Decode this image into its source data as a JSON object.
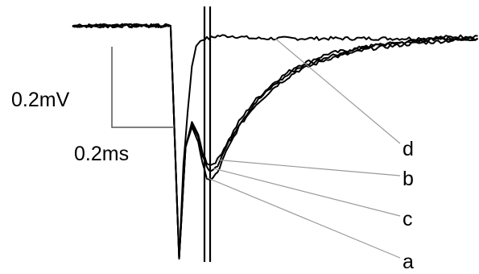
{
  "chart_data": {
    "type": "line",
    "title": "",
    "xlabel": "",
    "ylabel": "",
    "scale_bar": {
      "voltage_label": "0.2mV",
      "time_label": "0.2ms"
    },
    "trace_labels": [
      "d",
      "b",
      "c",
      "a"
    ],
    "series": [
      {
        "name": "d",
        "x": [
          0.0,
          0.21,
          0.46,
          0.5,
          0.52,
          0.54,
          0.56,
          0.58,
          0.6,
          0.62,
          0.64,
          0.68,
          0.75,
          0.85,
          1.0,
          1.2,
          1.4,
          1.6,
          1.9
        ],
        "y": [
          0.0,
          0.0,
          0.0,
          -0.92,
          -0.55,
          -0.34,
          -0.16,
          -0.08,
          -0.06,
          -0.05,
          -0.05,
          -0.04,
          -0.04,
          -0.05,
          -0.05,
          -0.05,
          -0.05,
          -0.05,
          -0.04
        ]
      },
      {
        "name": "b",
        "x": [
          0.0,
          0.21,
          0.46,
          0.5,
          0.53,
          0.56,
          0.59,
          0.61,
          0.63,
          0.65,
          0.68,
          0.72,
          0.78,
          0.85,
          0.95,
          1.05,
          1.2,
          1.4,
          1.6,
          1.75,
          1.9
        ],
        "y": [
          0.0,
          0.0,
          0.0,
          -0.92,
          -0.48,
          -0.38,
          -0.43,
          -0.5,
          -0.54,
          -0.55,
          -0.53,
          -0.47,
          -0.38,
          -0.3,
          -0.22,
          -0.16,
          -0.11,
          -0.08,
          -0.06,
          -0.05,
          -0.05
        ]
      },
      {
        "name": "c",
        "x": [
          0.0,
          0.21,
          0.46,
          0.5,
          0.53,
          0.56,
          0.59,
          0.61,
          0.63,
          0.65,
          0.68,
          0.72,
          0.78,
          0.85,
          0.95,
          1.05,
          1.2,
          1.4,
          1.6,
          1.75,
          1.9
        ],
        "y": [
          0.0,
          0.0,
          0.0,
          -0.92,
          -0.48,
          -0.39,
          -0.44,
          -0.51,
          -0.56,
          -0.57,
          -0.55,
          -0.48,
          -0.39,
          -0.31,
          -0.23,
          -0.17,
          -0.12,
          -0.08,
          -0.06,
          -0.05,
          -0.05
        ]
      },
      {
        "name": "a",
        "x": [
          0.0,
          0.21,
          0.46,
          0.5,
          0.53,
          0.56,
          0.59,
          0.61,
          0.63,
          0.65,
          0.68,
          0.72,
          0.78,
          0.85,
          0.95,
          1.05,
          1.2,
          1.4,
          1.6,
          1.75,
          1.9
        ],
        "y": [
          0.0,
          0.0,
          0.0,
          -0.92,
          -0.48,
          -0.4,
          -0.46,
          -0.55,
          -0.6,
          -0.61,
          -0.58,
          -0.5,
          -0.4,
          -0.32,
          -0.24,
          -0.18,
          -0.13,
          -0.09,
          -0.07,
          -0.06,
          -0.05
        ]
      }
    ]
  }
}
